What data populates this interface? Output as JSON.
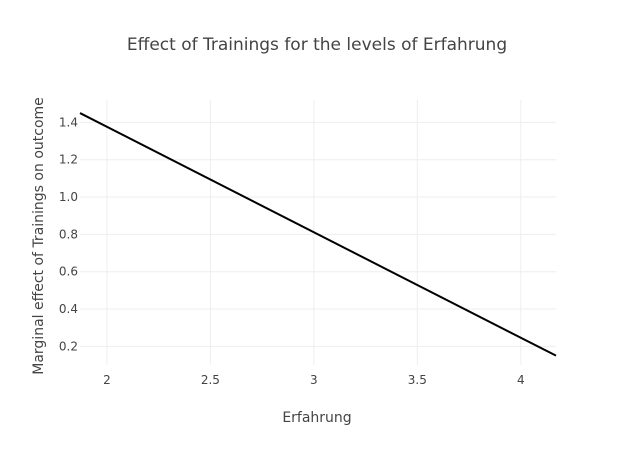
{
  "chart_data": {
    "type": "line",
    "title": "Effect of Trainings for the levels of Erfahrung",
    "xlabel": "Erfahrung",
    "ylabel": "Marginal effect of Trainings on outcome",
    "xlim": [
      1.87,
      4.17
    ],
    "ylim": [
      0.1,
      1.52
    ],
    "x_ticks": [
      2,
      2.5,
      3,
      3.5,
      4
    ],
    "x_tick_labels": [
      "2",
      "2.5",
      "3",
      "3.5",
      "4"
    ],
    "y_ticks": [
      0.2,
      0.4,
      0.6,
      0.8,
      1.0,
      1.2,
      1.4
    ],
    "y_tick_labels": [
      "0.2",
      "0.4",
      "0.6",
      "0.8",
      "1.0",
      "1.2",
      "1.4"
    ],
    "grid": true,
    "series": [
      {
        "color": "#000000",
        "x": [
          1.87,
          4.17
        ],
        "y": [
          1.45,
          0.15
        ]
      }
    ]
  }
}
